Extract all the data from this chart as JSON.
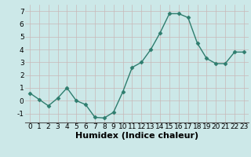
{
  "x": [
    0,
    1,
    2,
    3,
    4,
    5,
    6,
    7,
    8,
    9,
    10,
    11,
    12,
    13,
    14,
    15,
    16,
    17,
    18,
    19,
    20,
    21,
    22,
    23
  ],
  "y": [
    0.6,
    0.1,
    -0.4,
    0.2,
    1.0,
    0.0,
    -0.3,
    -1.3,
    -1.35,
    -0.9,
    0.7,
    2.6,
    3.0,
    4.0,
    5.3,
    6.8,
    6.8,
    6.5,
    4.5,
    3.3,
    2.9,
    2.9,
    3.8,
    3.8
  ],
  "line_color": "#2e7d6e",
  "marker": "D",
  "markersize": 2.5,
  "linewidth": 1.0,
  "bg_color": "#cce8e8",
  "grid_color": "#b8cccc",
  "xlabel": "Humidex (Indice chaleur)",
  "tick_fontsize": 6.5,
  "xlabel_fontsize": 8,
  "xlim": [
    -0.5,
    23.5
  ],
  "ylim": [
    -1.7,
    7.5
  ],
  "yticks": [
    -1,
    0,
    1,
    2,
    3,
    4,
    5,
    6,
    7
  ],
  "xticks": [
    0,
    1,
    2,
    3,
    4,
    5,
    6,
    7,
    8,
    9,
    10,
    11,
    12,
    13,
    14,
    15,
    16,
    17,
    18,
    19,
    20,
    21,
    22,
    23
  ]
}
